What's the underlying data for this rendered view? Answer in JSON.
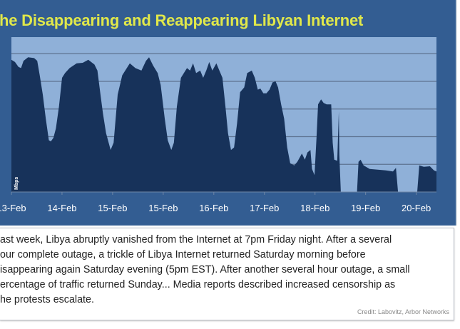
{
  "title": "he Disappearing and Reappearing Libyan Internet",
  "colors": {
    "frame": "#335d92",
    "plot_bg": "#8fb0d8",
    "area": "#17325a",
    "title": "#e1e84a",
    "grid": "#5d7290"
  },
  "chart_data": {
    "type": "area",
    "title": "he Disappearing and Reappearing Libyan Internet",
    "ylabel": "Mbps",
    "xlabel": "",
    "tick_labels": [
      "13-Feb",
      "14-Feb",
      "15-Feb",
      "15-Feb",
      "16-Feb",
      "17-Feb",
      "18-Feb",
      "19-Feb",
      "20-Feb"
    ],
    "xlim": [
      0,
      8.4
    ],
    "ylim": [
      0,
      5.6
    ],
    "grid": true,
    "gridlines": [
      1,
      2,
      3,
      4,
      5
    ],
    "points": [
      [
        0,
        4.78
      ],
      [
        0.07,
        4.7
      ],
      [
        0.14,
        4.52
      ],
      [
        0.19,
        4.48
      ],
      [
        0.24,
        4.74
      ],
      [
        0.33,
        4.87
      ],
      [
        0.45,
        4.84
      ],
      [
        0.51,
        4.74
      ],
      [
        0.56,
        4.22
      ],
      [
        0.62,
        3.52
      ],
      [
        0.68,
        2.65
      ],
      [
        0.74,
        1.87
      ],
      [
        0.78,
        1.83
      ],
      [
        0.83,
        1.96
      ],
      [
        0.88,
        2.3
      ],
      [
        0.94,
        3.09
      ],
      [
        1.0,
        4.13
      ],
      [
        1.06,
        4.3
      ],
      [
        1.15,
        4.48
      ],
      [
        1.29,
        4.65
      ],
      [
        1.41,
        4.67
      ],
      [
        1.52,
        4.78
      ],
      [
        1.64,
        4.61
      ],
      [
        1.7,
        4.39
      ],
      [
        1.76,
        3.52
      ],
      [
        1.81,
        2.83
      ],
      [
        1.87,
        2.13
      ],
      [
        1.96,
        1.52
      ],
      [
        2.02,
        1.78
      ],
      [
        2.1,
        3.52
      ],
      [
        2.19,
        4.22
      ],
      [
        2.34,
        4.65
      ],
      [
        2.45,
        4.48
      ],
      [
        2.57,
        4.39
      ],
      [
        2.66,
        4.74
      ],
      [
        2.72,
        4.87
      ],
      [
        2.8,
        4.57
      ],
      [
        2.89,
        4.3
      ],
      [
        2.95,
        3.87
      ],
      [
        3.03,
        2.65
      ],
      [
        3.09,
        1.87
      ],
      [
        3.16,
        1.52
      ],
      [
        3.21,
        1.78
      ],
      [
        3.27,
        3.09
      ],
      [
        3.35,
        4.13
      ],
      [
        3.47,
        4.48
      ],
      [
        3.53,
        4.39
      ],
      [
        3.59,
        4.65
      ],
      [
        3.65,
        4.3
      ],
      [
        3.73,
        4.39
      ],
      [
        3.79,
        4.13
      ],
      [
        3.85,
        4.39
      ],
      [
        3.91,
        4.7
      ],
      [
        3.97,
        4.39
      ],
      [
        4.05,
        4.65
      ],
      [
        4.11,
        4.39
      ],
      [
        4.17,
        4.13
      ],
      [
        4.23,
        3.09
      ],
      [
        4.28,
        2.13
      ],
      [
        4.34,
        1.52
      ],
      [
        4.4,
        1.61
      ],
      [
        4.46,
        2.48
      ],
      [
        4.52,
        3.61
      ],
      [
        4.6,
        3.78
      ],
      [
        4.66,
        4.3
      ],
      [
        4.75,
        4.39
      ],
      [
        4.81,
        4.13
      ],
      [
        4.87,
        3.7
      ],
      [
        4.92,
        3.74
      ],
      [
        4.98,
        3.57
      ],
      [
        5.04,
        3.57
      ],
      [
        5.1,
        3.7
      ],
      [
        5.16,
        3.96
      ],
      [
        5.22,
        4.0
      ],
      [
        5.27,
        3.78
      ],
      [
        5.33,
        3.17
      ],
      [
        5.39,
        2.65
      ],
      [
        5.45,
        1.61
      ],
      [
        5.51,
        1.04
      ],
      [
        5.59,
        0.96
      ],
      [
        5.65,
        1.09
      ],
      [
        5.74,
        1.39
      ],
      [
        5.8,
        1.17
      ],
      [
        5.85,
        1.43
      ],
      [
        5.91,
        1.52
      ],
      [
        5.94,
        0.83
      ],
      [
        5.99,
        0.61
      ],
      [
        6.03,
        1.96
      ],
      [
        6.06,
        3.17
      ],
      [
        6.12,
        3.35
      ],
      [
        6.17,
        3.22
      ],
      [
        6.23,
        3.17
      ],
      [
        6.32,
        3.17
      ],
      [
        6.35,
        1.78
      ],
      [
        6.38,
        1.17
      ],
      [
        6.44,
        1.13
      ],
      [
        6.47,
        2.91
      ],
      [
        6.48,
        1.35
      ],
      [
        6.51,
        0
      ],
      [
        6.83,
        0
      ],
      [
        6.86,
        1.09
      ],
      [
        6.9,
        1.17
      ],
      [
        6.96,
        0.96
      ],
      [
        7.08,
        0.83
      ],
      [
        7.22,
        0.81
      ],
      [
        7.4,
        0.78
      ],
      [
        7.54,
        0.74
      ],
      [
        7.6,
        0.87
      ],
      [
        7.64,
        0
      ],
      [
        8.02,
        0
      ],
      [
        8.06,
        0.96
      ],
      [
        8.15,
        0.91
      ],
      [
        8.27,
        0.93
      ],
      [
        8.35,
        0.78
      ],
      [
        8.4,
        0.74
      ]
    ]
  },
  "caption": {
    "lines": [
      "ast week, Libya abruptly vanished from the Internet at 7pm Friday night. After a several",
      "our complete outage, a trickle of Libya Internet returned Saturday morning before",
      "isappearing again Saturday evening (5pm EST). After another several hour outage, a small",
      "ercentage of traffic returned Sunday... Media reports described increased censorship as",
      "he protests escalate."
    ],
    "credit": "Credit:  Labovitz, Arbor Networks"
  }
}
